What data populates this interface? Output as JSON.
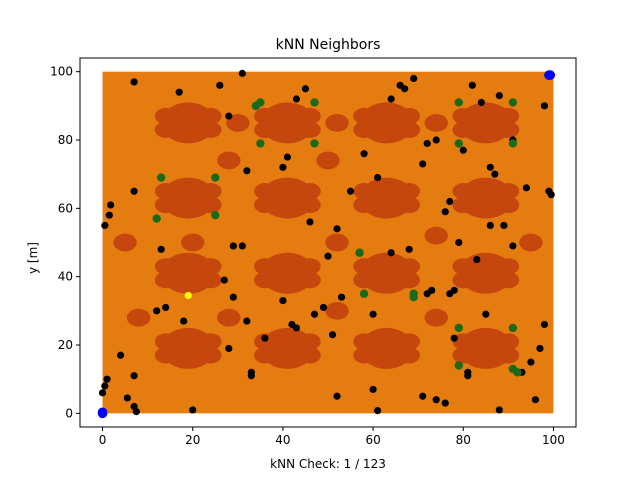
{
  "chart_data": {
    "type": "scatter",
    "title": "kNN Neighbors",
    "xlabel": "kNN Check: 1 / 123",
    "ylabel": "y [m]",
    "xlim": [
      -5,
      105
    ],
    "ylim": [
      -4,
      104
    ],
    "xticks": [
      "0",
      "20",
      "40",
      "60",
      "80",
      "100"
    ],
    "yticks": [
      "0",
      "20",
      "40",
      "60",
      "80",
      "100"
    ],
    "grid": false,
    "colors": {
      "workspace": "#e57c10",
      "obstacle": "#c6470e",
      "sample": "#000000",
      "neighbor": "#1a6a1a",
      "query": "#ffff00",
      "endpoint": "#0000ff"
    },
    "workspace": {
      "x": [
        0,
        100
      ],
      "y": [
        0,
        100
      ]
    },
    "obstacles": {
      "large_circles": [
        [
          19,
          85
        ],
        [
          41,
          85
        ],
        [
          63,
          85
        ],
        [
          85,
          85
        ],
        [
          19,
          63
        ],
        [
          41,
          63
        ],
        [
          63,
          63
        ],
        [
          85,
          63
        ],
        [
          19,
          41
        ],
        [
          41,
          41
        ],
        [
          63,
          41
        ],
        [
          85,
          41
        ],
        [
          19,
          19
        ],
        [
          41,
          19
        ],
        [
          63,
          19
        ],
        [
          85,
          19
        ]
      ],
      "small_circles": [
        [
          28,
          74
        ],
        [
          50,
          74
        ],
        [
          52,
          30
        ],
        [
          5,
          50
        ],
        [
          20,
          50
        ],
        [
          52,
          50
        ],
        [
          74,
          52
        ],
        [
          95,
          50
        ],
        [
          28,
          28
        ],
        [
          74,
          28
        ],
        [
          8,
          28
        ],
        [
          30,
          85
        ],
        [
          52,
          85
        ],
        [
          74,
          85
        ]
      ]
    },
    "samples": [
      [
        0,
        6
      ],
      [
        0.5,
        8
      ],
      [
        1,
        10
      ],
      [
        0.5,
        55
      ],
      [
        1.5,
        58
      ],
      [
        1.8,
        61
      ],
      [
        4,
        17
      ],
      [
        5.5,
        4.5
      ],
      [
        7,
        11
      ],
      [
        7,
        2
      ],
      [
        7.5,
        0.5
      ],
      [
        7,
        65
      ],
      [
        7,
        97
      ],
      [
        12,
        30
      ],
      [
        13,
        48
      ],
      [
        14,
        31
      ],
      [
        17,
        94
      ],
      [
        18,
        27
      ],
      [
        20,
        1
      ],
      [
        25,
        69
      ],
      [
        26,
        96
      ],
      [
        27,
        39
      ],
      [
        28,
        19
      ],
      [
        28,
        87
      ],
      [
        29,
        34
      ],
      [
        29,
        49
      ],
      [
        31,
        49
      ],
      [
        31,
        99.5
      ],
      [
        32,
        71
      ],
      [
        32,
        27
      ],
      [
        33,
        12
      ],
      [
        33,
        11
      ],
      [
        34,
        90
      ],
      [
        36,
        22
      ],
      [
        40,
        33
      ],
      [
        40,
        72
      ],
      [
        41,
        75
      ],
      [
        42,
        26
      ],
      [
        43,
        25
      ],
      [
        43,
        92
      ],
      [
        45,
        95
      ],
      [
        46,
        56
      ],
      [
        47,
        29
      ],
      [
        49,
        31
      ],
      [
        50,
        46
      ],
      [
        51,
        23
      ],
      [
        52,
        54
      ],
      [
        52,
        5
      ],
      [
        53,
        34
      ],
      [
        55,
        65
      ],
      [
        58,
        76
      ],
      [
        60,
        7
      ],
      [
        60,
        29
      ],
      [
        61,
        69
      ],
      [
        61,
        0.8
      ],
      [
        64,
        47
      ],
      [
        64,
        92
      ],
      [
        66,
        96
      ],
      [
        67,
        95
      ],
      [
        68,
        48
      ],
      [
        69,
        98
      ],
      [
        71,
        73
      ],
      [
        71,
        5
      ],
      [
        72,
        79
      ],
      [
        72,
        35
      ],
      [
        73,
        36
      ],
      [
        74,
        80
      ],
      [
        74,
        4
      ],
      [
        76,
        59
      ],
      [
        76,
        3
      ],
      [
        77,
        62
      ],
      [
        77,
        35
      ],
      [
        78,
        36
      ],
      [
        78,
        22
      ],
      [
        79,
        50
      ],
      [
        80,
        77
      ],
      [
        81,
        12
      ],
      [
        81,
        11
      ],
      [
        82,
        96
      ],
      [
        83,
        45
      ],
      [
        84,
        91
      ],
      [
        85,
        29
      ],
      [
        86,
        72
      ],
      [
        86,
        55
      ],
      [
        87,
        70
      ],
      [
        88,
        93
      ],
      [
        88,
        1
      ],
      [
        89,
        55
      ],
      [
        91,
        49
      ],
      [
        91,
        80
      ],
      [
        93,
        12
      ],
      [
        94,
        66
      ],
      [
        95,
        15
      ],
      [
        96,
        4
      ],
      [
        97,
        19
      ],
      [
        98,
        26
      ],
      [
        98,
        90
      ],
      [
        99,
        65
      ],
      [
        99.5,
        64
      ]
    ],
    "neighbors": [
      [
        34,
        90
      ],
      [
        35,
        91
      ],
      [
        47,
        91
      ],
      [
        35,
        79
      ],
      [
        47,
        79
      ],
      [
        13,
        69
      ],
      [
        25,
        69
      ],
      [
        12,
        57
      ],
      [
        25,
        58
      ],
      [
        57,
        47
      ],
      [
        58,
        35
      ],
      [
        69,
        35
      ],
      [
        69,
        34
      ],
      [
        79,
        91
      ],
      [
        91,
        91
      ],
      [
        79,
        79
      ],
      [
        91,
        79
      ],
      [
        79,
        25
      ],
      [
        91,
        25
      ],
      [
        79,
        14
      ],
      [
        91,
        13
      ],
      [
        92,
        12
      ]
    ],
    "query": [
      [
        19,
        34.5
      ]
    ],
    "endpoints": [
      [
        0,
        0
      ],
      [
        99,
        99
      ],
      [
        0,
        0.3
      ],
      [
        99.3,
        99
      ]
    ]
  }
}
